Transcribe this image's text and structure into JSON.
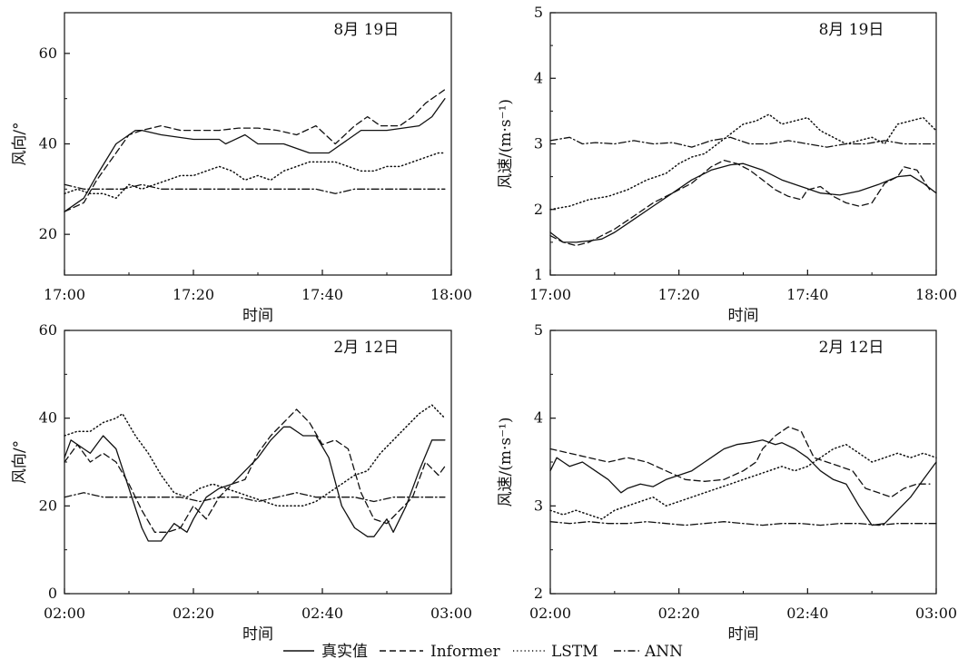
{
  "legend": [
    {
      "name": "真实值",
      "dash": "solid"
    },
    {
      "name": "Informer",
      "dash": "dashed"
    },
    {
      "name": "LSTM",
      "dash": "dotted"
    },
    {
      "name": "ANN",
      "dash": "dashdot"
    }
  ],
  "chart_data": [
    {
      "type": "line",
      "title": "8月 19日",
      "xlabel": "时间",
      "ylabel": "风向/°",
      "x_ticks": [
        "17:00",
        "17:20",
        "17:40",
        "18:00"
      ],
      "y_ticks": [
        20,
        40,
        60
      ],
      "xlim": [
        0,
        60
      ],
      "ylim": [
        11,
        69
      ],
      "series": [
        {
          "name": "真实值",
          "x": [
            0,
            3,
            5,
            8,
            11,
            12,
            15,
            20,
            24,
            25,
            28,
            29,
            30,
            34,
            38,
            41,
            46,
            50,
            55,
            57,
            59
          ],
          "values": [
            25,
            28,
            33,
            40,
            43,
            43,
            42,
            41,
            41,
            40,
            42,
            41,
            40,
            40,
            38,
            38,
            43,
            43,
            44,
            46,
            50
          ]
        },
        {
          "name": "Informer",
          "x": [
            0,
            3,
            5,
            8,
            10,
            12,
            15,
            18,
            21,
            24,
            27,
            30,
            33,
            36,
            39,
            42,
            45,
            47,
            49,
            52,
            54,
            56,
            58,
            59
          ],
          "values": [
            25,
            27,
            32,
            38,
            42,
            43,
            44,
            43,
            43,
            43,
            43.5,
            43.5,
            43,
            42,
            44,
            40,
            44,
            46,
            44,
            44,
            46,
            49,
            51,
            52
          ]
        },
        {
          "name": "LSTM",
          "x": [
            0,
            2,
            4,
            6,
            8,
            10,
            12,
            14,
            16,
            18,
            20,
            22,
            24,
            26,
            28,
            30,
            32,
            34,
            36,
            38,
            40,
            42,
            44,
            46,
            48,
            50,
            52,
            54,
            56,
            58,
            59
          ],
          "values": [
            29,
            30,
            29,
            29,
            28,
            31,
            30,
            31,
            32,
            33,
            33,
            34,
            35,
            34,
            32,
            33,
            32,
            34,
            35,
            36,
            36,
            36,
            35,
            34,
            34,
            35,
            35,
            36,
            37,
            38,
            38
          ]
        },
        {
          "name": "ANN",
          "x": [
            0,
            3,
            6,
            9,
            12,
            15,
            18,
            21,
            24,
            27,
            30,
            33,
            36,
            39,
            42,
            45,
            48,
            51,
            54,
            57,
            59
          ],
          "values": [
            31,
            30,
            30,
            30,
            31,
            30,
            30,
            30,
            30,
            30,
            30,
            30,
            30,
            30,
            29,
            30,
            30,
            30,
            30,
            30,
            30
          ]
        }
      ]
    },
    {
      "type": "line",
      "title": "8月 19日",
      "xlabel": "时间",
      "ylabel": "风速/(m·s⁻¹)",
      "x_ticks": [
        "17:00",
        "17:20",
        "17:40",
        "18:00"
      ],
      "y_ticks": [
        1,
        2,
        3,
        4,
        5
      ],
      "xlim": [
        0,
        60
      ],
      "ylim": [
        1,
        5
      ],
      "series": [
        {
          "name": "真实值",
          "x": [
            0,
            2,
            4,
            6,
            8,
            10,
            13,
            16,
            19,
            22,
            25,
            28,
            30,
            33,
            36,
            39,
            42,
            45,
            48,
            51,
            54,
            56,
            58,
            60
          ],
          "values": [
            1.65,
            1.5,
            1.5,
            1.52,
            1.55,
            1.65,
            1.85,
            2.05,
            2.25,
            2.45,
            2.6,
            2.68,
            2.7,
            2.6,
            2.45,
            2.35,
            2.25,
            2.22,
            2.28,
            2.38,
            2.5,
            2.52,
            2.4,
            2.25
          ]
        },
        {
          "name": "Informer",
          "x": [
            0,
            2,
            4,
            6,
            8,
            10,
            13,
            16,
            19,
            22,
            25,
            27,
            29,
            31,
            33,
            35,
            37,
            39,
            40,
            42,
            44,
            46,
            48,
            50,
            52,
            54,
            55,
            57,
            59
          ],
          "values": [
            1.6,
            1.5,
            1.45,
            1.5,
            1.6,
            1.7,
            1.9,
            2.1,
            2.25,
            2.4,
            2.65,
            2.75,
            2.7,
            2.6,
            2.45,
            2.3,
            2.2,
            2.15,
            2.3,
            2.35,
            2.2,
            2.1,
            2.05,
            2.1,
            2.4,
            2.5,
            2.65,
            2.6,
            2.3
          ]
        },
        {
          "name": "LSTM",
          "x": [
            0,
            3,
            6,
            9,
            12,
            15,
            18,
            20,
            22,
            24,
            26,
            28,
            30,
            32,
            34,
            36,
            38,
            40,
            42,
            44,
            46,
            48,
            50,
            52,
            54,
            56,
            58,
            60
          ],
          "values": [
            2.0,
            2.05,
            2.15,
            2.2,
            2.3,
            2.45,
            2.55,
            2.7,
            2.8,
            2.85,
            3.0,
            3.15,
            3.3,
            3.35,
            3.45,
            3.3,
            3.35,
            3.4,
            3.2,
            3.1,
            3.0,
            3.05,
            3.1,
            3.0,
            3.3,
            3.35,
            3.4,
            3.2
          ]
        },
        {
          "name": "ANN",
          "x": [
            0,
            3,
            5,
            7,
            10,
            13,
            16,
            19,
            22,
            25,
            28,
            31,
            34,
            37,
            40,
            43,
            46,
            49,
            52,
            55,
            58,
            60
          ],
          "values": [
            3.05,
            3.1,
            3.0,
            3.02,
            3.0,
            3.05,
            3.0,
            3.02,
            2.95,
            3.05,
            3.1,
            3.0,
            3.0,
            3.05,
            3.0,
            2.95,
            3.0,
            3.0,
            3.05,
            3.0,
            3.0,
            3.0
          ]
        }
      ]
    },
    {
      "type": "line",
      "title": "2月 12日",
      "xlabel": "时间",
      "ylabel": "风向/°",
      "x_ticks": [
        "02:00",
        "02:20",
        "02:40",
        "03:00"
      ],
      "y_ticks": [
        0,
        20,
        40,
        60
      ],
      "xlim": [
        0,
        60
      ],
      "ylim": [
        0,
        60
      ],
      "series": [
        {
          "name": "真实值",
          "x": [
            0,
            1,
            3,
            4,
            6,
            8,
            10,
            12,
            13,
            15,
            17,
            19,
            20,
            22,
            24,
            26,
            28,
            30,
            32,
            34,
            35,
            37,
            39,
            41,
            43,
            45,
            47,
            48,
            50,
            51,
            53,
            55,
            57,
            59
          ],
          "values": [
            31,
            35,
            33,
            32,
            36,
            33,
            24,
            15,
            12,
            12,
            16,
            14,
            17,
            22,
            24,
            25,
            28,
            31,
            35,
            38,
            38,
            36,
            36,
            31,
            20,
            15,
            13,
            13,
            17,
            14,
            20,
            28,
            35,
            35
          ]
        },
        {
          "name": "Informer",
          "x": [
            0,
            2,
            4,
            6,
            8,
            10,
            12,
            14,
            16,
            18,
            20,
            22,
            24,
            26,
            28,
            30,
            32,
            34,
            36,
            38,
            40,
            42,
            44,
            46,
            48,
            50,
            52,
            54,
            56,
            58,
            59
          ],
          "values": [
            30,
            34,
            30,
            32,
            30,
            25,
            19,
            14,
            14,
            15,
            20,
            17,
            22,
            25,
            26,
            32,
            36,
            39,
            42,
            39,
            34,
            35,
            33,
            23,
            17,
            16,
            19,
            22,
            30,
            27,
            29
          ]
        },
        {
          "name": "LSTM",
          "x": [
            0,
            2,
            4,
            6,
            8,
            9,
            11,
            13,
            15,
            17,
            19,
            21,
            23,
            25,
            27,
            29,
            31,
            33,
            35,
            37,
            39,
            41,
            43,
            45,
            47,
            49,
            51,
            53,
            55,
            57,
            59
          ],
          "values": [
            36,
            37,
            37,
            39,
            40,
            41,
            36,
            32,
            27,
            23,
            22,
            24,
            25,
            24,
            23,
            22,
            21,
            20,
            20,
            20,
            21,
            23,
            25,
            27,
            28,
            32,
            35,
            38,
            41,
            43,
            40
          ]
        },
        {
          "name": "ANN",
          "x": [
            0,
            3,
            6,
            9,
            12,
            15,
            18,
            21,
            24,
            27,
            30,
            33,
            36,
            39,
            42,
            45,
            48,
            51,
            54,
            57,
            59
          ],
          "values": [
            22,
            23,
            22,
            22,
            22,
            22,
            22,
            21,
            22,
            22,
            21,
            22,
            23,
            22,
            22,
            22,
            21,
            22,
            22,
            22,
            22
          ]
        }
      ]
    },
    {
      "type": "line",
      "title": "2月 12日",
      "xlabel": "时间",
      "ylabel": "风速/(m·s⁻¹)",
      "x_ticks": [
        "02:00",
        "02:20",
        "02:40",
        "03:00"
      ],
      "y_ticks": [
        2,
        3,
        4,
        5
      ],
      "xlim": [
        0,
        60
      ],
      "ylim": [
        2,
        5
      ],
      "series": [
        {
          "name": "真实值",
          "x": [
            0,
            1,
            2,
            3,
            5,
            7,
            9,
            11,
            12,
            14,
            16,
            18,
            20,
            22,
            24,
            26,
            27,
            29,
            31,
            33,
            35,
            36,
            38,
            40,
            42,
            44,
            46,
            48,
            50,
            52,
            54,
            56,
            58,
            60
          ],
          "values": [
            3.4,
            3.55,
            3.5,
            3.45,
            3.5,
            3.4,
            3.3,
            3.15,
            3.2,
            3.25,
            3.22,
            3.3,
            3.35,
            3.4,
            3.5,
            3.6,
            3.65,
            3.7,
            3.72,
            3.75,
            3.7,
            3.72,
            3.65,
            3.55,
            3.4,
            3.3,
            3.25,
            3.0,
            2.78,
            2.8,
            2.95,
            3.1,
            3.3,
            3.5
          ]
        },
        {
          "name": "Informer",
          "x": [
            0,
            3,
            6,
            9,
            12,
            15,
            18,
            21,
            24,
            27,
            30,
            32,
            33,
            35,
            37,
            39,
            41,
            43,
            45,
            47,
            49,
            51,
            53,
            55,
            57,
            59
          ],
          "values": [
            3.65,
            3.6,
            3.55,
            3.5,
            3.55,
            3.5,
            3.4,
            3.3,
            3.28,
            3.3,
            3.4,
            3.5,
            3.65,
            3.8,
            3.9,
            3.85,
            3.55,
            3.5,
            3.45,
            3.4,
            3.2,
            3.15,
            3.1,
            3.2,
            3.25,
            3.25
          ]
        },
        {
          "name": "LSTM",
          "x": [
            0,
            2,
            4,
            6,
            8,
            10,
            12,
            14,
            16,
            18,
            20,
            22,
            24,
            26,
            28,
            30,
            32,
            34,
            36,
            38,
            40,
            42,
            44,
            46,
            48,
            50,
            52,
            54,
            56,
            58,
            60
          ],
          "values": [
            2.95,
            2.9,
            2.95,
            2.9,
            2.85,
            2.95,
            3.0,
            3.05,
            3.1,
            3.0,
            3.05,
            3.1,
            3.15,
            3.2,
            3.25,
            3.3,
            3.35,
            3.4,
            3.45,
            3.4,
            3.45,
            3.55,
            3.65,
            3.7,
            3.6,
            3.5,
            3.55,
            3.6,
            3.55,
            3.6,
            3.55
          ]
        },
        {
          "name": "ANN",
          "x": [
            0,
            3,
            6,
            9,
            12,
            15,
            18,
            21,
            24,
            27,
            30,
            33,
            36,
            39,
            42,
            45,
            48,
            51,
            54,
            57,
            60
          ],
          "values": [
            2.82,
            2.8,
            2.82,
            2.8,
            2.8,
            2.82,
            2.8,
            2.78,
            2.8,
            2.82,
            2.8,
            2.78,
            2.8,
            2.8,
            2.78,
            2.8,
            2.8,
            2.78,
            2.8,
            2.8,
            2.8
          ]
        }
      ]
    }
  ]
}
